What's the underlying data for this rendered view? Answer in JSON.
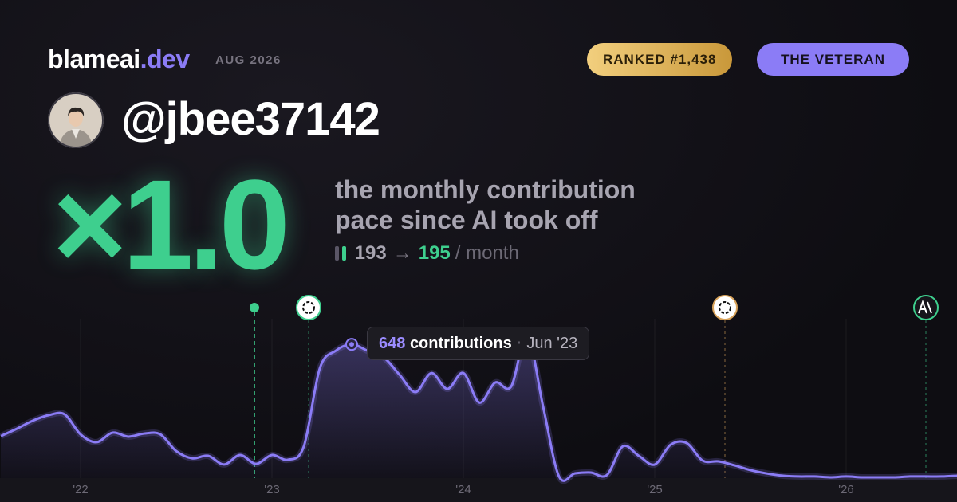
{
  "header": {
    "brand": "blameai",
    "brand_tld": ".dev",
    "date": "AUG 2026",
    "rank_badge": "RANKED #1,438",
    "title_badge": "THE VETERAN"
  },
  "profile": {
    "handle": "@jbee37142"
  },
  "headline": {
    "multiplier": "×1.0",
    "description": [
      "the monthly contribution",
      "pace since AI took off"
    ],
    "before": "193",
    "arrow": "→",
    "after": "195",
    "unit": "/ month"
  },
  "chart_data": {
    "type": "area",
    "categories": [
      null,
      null,
      null,
      null,
      null,
      "'22",
      null,
      null,
      null,
      null,
      null,
      null,
      null,
      null,
      null,
      null,
      null,
      "'23",
      null,
      null,
      null,
      null,
      null,
      null,
      null,
      null,
      null,
      null,
      null,
      "'24",
      null,
      null,
      null,
      null,
      null,
      null,
      null,
      null,
      null,
      null,
      null,
      "'25",
      null,
      null,
      null,
      null,
      null,
      null,
      null,
      null,
      null,
      null,
      null,
      "'26",
      null,
      null,
      null,
      null,
      null,
      null,
      null
    ],
    "values": [
      204,
      239,
      278,
      305,
      309,
      212,
      174,
      220,
      201,
      216,
      212,
      131,
      96,
      108,
      66,
      112,
      69,
      112,
      89,
      154,
      532,
      617,
      648,
      617,
      586,
      501,
      417,
      509,
      432,
      509,
      366,
      463,
      444,
      694,
      347,
      8,
      23,
      27,
      15,
      154,
      108,
      66,
      162,
      170,
      85,
      81,
      62,
      39,
      23,
      12,
      8,
      8,
      4,
      8,
      4,
      4,
      4,
      8,
      8,
      8,
      12
    ],
    "color": "#8b7cf6",
    "ylim": [
      0,
      780
    ],
    "grid": true,
    "tooltip": {
      "unit": "contributions",
      "separator": "·",
      "date": "Jun '23"
    }
  }
}
